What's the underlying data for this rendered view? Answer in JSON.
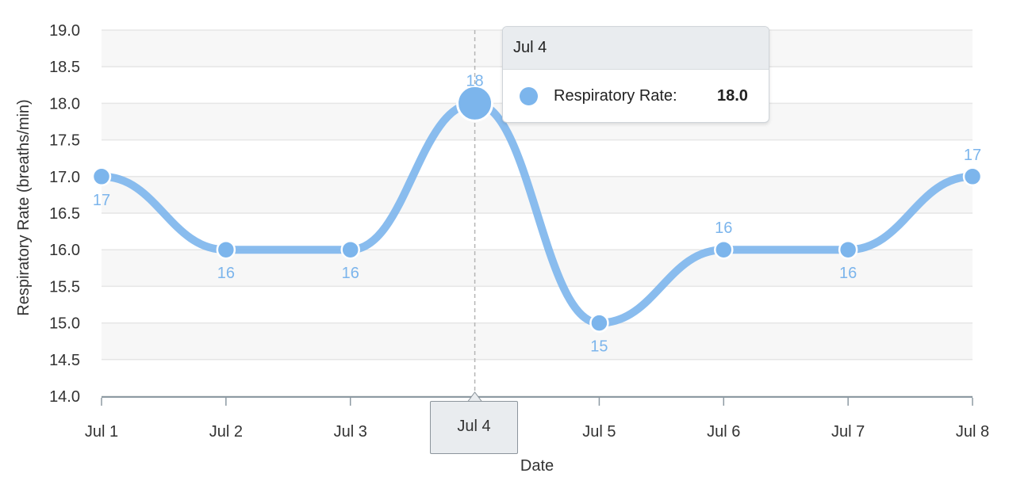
{
  "chart_data": {
    "type": "line",
    "title": "",
    "xlabel": "Date",
    "ylabel": "Respiratory Rate (breaths/min)",
    "categories": [
      "Jul 1",
      "Jul 2",
      "Jul 3",
      "Jul 4",
      "Jul 5",
      "Jul 6",
      "Jul 7",
      "Jul 8"
    ],
    "series": [
      {
        "name": "Respiratory Rate",
        "values": [
          17,
          16,
          16,
          18,
          15,
          16,
          16,
          17
        ],
        "color": "#7cb5ec"
      }
    ],
    "data_labels": [
      "17",
      "16",
      "16",
      "18",
      "15",
      "16",
      "16",
      "17"
    ],
    "ylim": [
      14.0,
      19.0
    ],
    "yticks": [
      "14.0",
      "14.5",
      "15.0",
      "15.5",
      "16.0",
      "16.5",
      "17.0",
      "17.5",
      "18.0",
      "18.5",
      "19.0"
    ],
    "grid": true,
    "smooth": true,
    "band_colors": [
      "#ffffff",
      "#f7f7f7"
    ],
    "highlight_index": 3
  },
  "tooltip": {
    "header": "Jul 4",
    "series_name": "Respiratory Rate:",
    "value": "18.0"
  },
  "crosshair_label": "Jul 4"
}
